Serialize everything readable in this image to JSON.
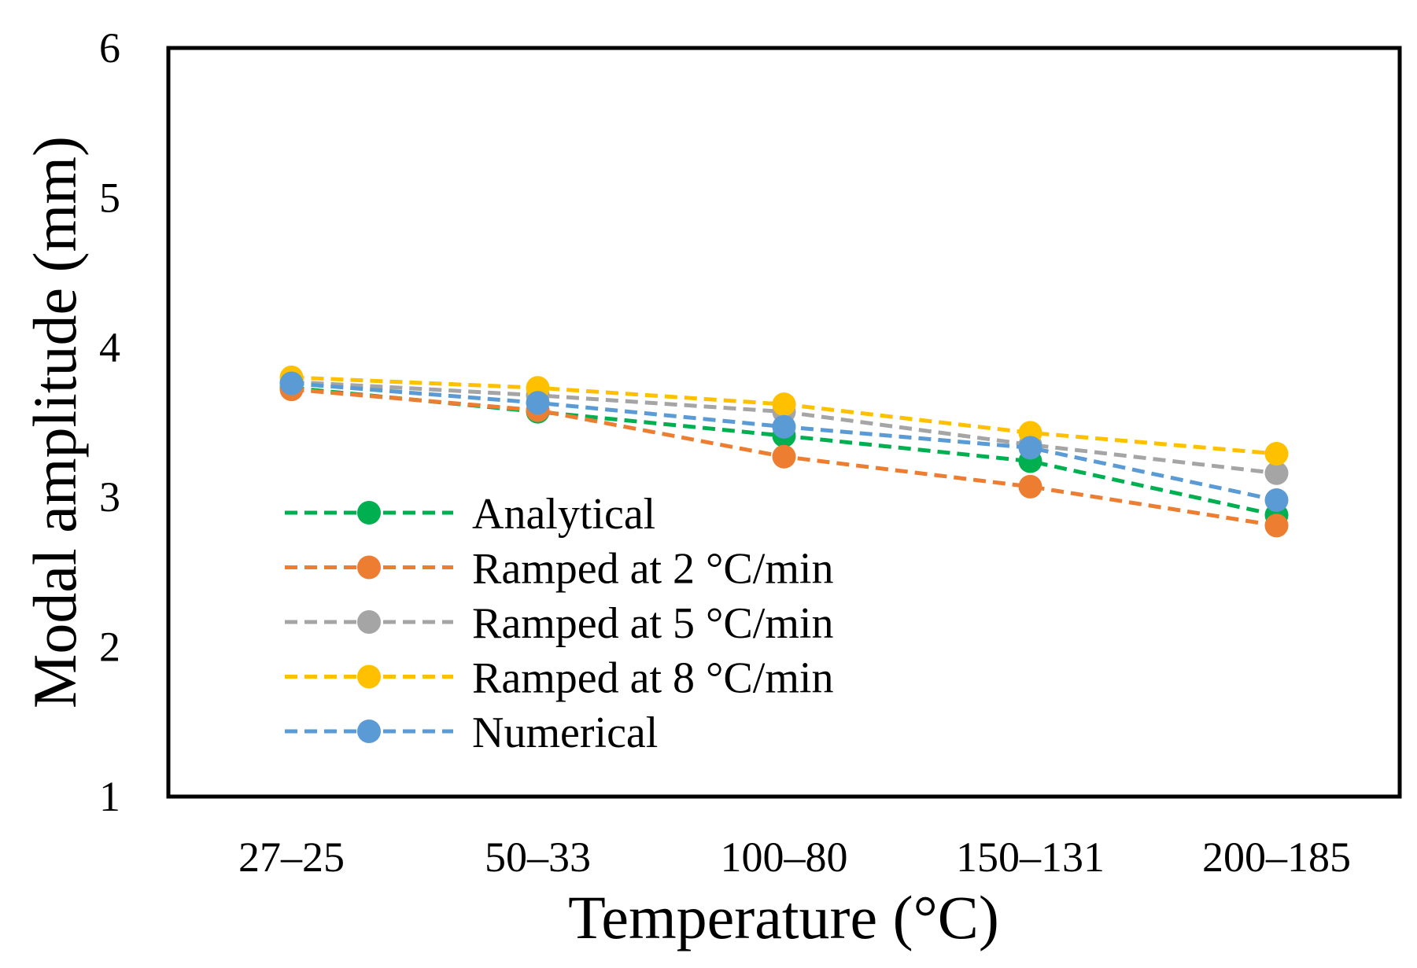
{
  "chart_data": {
    "type": "line",
    "title": "",
    "xlabel": "Temperature (°C)",
    "ylabel": "Modal amplitude (mm)",
    "categories": [
      "27–25",
      "50–33",
      "100–80",
      "150–131",
      "200–185"
    ],
    "ylim": [
      1,
      6
    ],
    "yticks": [
      1,
      2,
      3,
      4,
      5,
      6
    ],
    "grid": false,
    "legend_position": "lower-left",
    "series": [
      {
        "name": "Analytical",
        "color": "#00B050",
        "values": [
          3.73,
          3.57,
          3.41,
          3.24,
          2.88
        ]
      },
      {
        "name": "Ramped at 2 °C/min",
        "color": "#ED7D31",
        "values": [
          3.72,
          3.58,
          3.27,
          3.07,
          2.81
        ]
      },
      {
        "name": "Ramped at 5 °C/min",
        "color": "#A5A5A5",
        "values": [
          3.77,
          3.68,
          3.57,
          3.35,
          3.16
        ]
      },
      {
        "name": "Ramped at 8 °C/min",
        "color": "#FFC000",
        "values": [
          3.8,
          3.73,
          3.62,
          3.43,
          3.29
        ]
      },
      {
        "name": "Numerical",
        "color": "#5B9BD5",
        "values": [
          3.76,
          3.63,
          3.47,
          3.33,
          2.98
        ]
      }
    ]
  }
}
